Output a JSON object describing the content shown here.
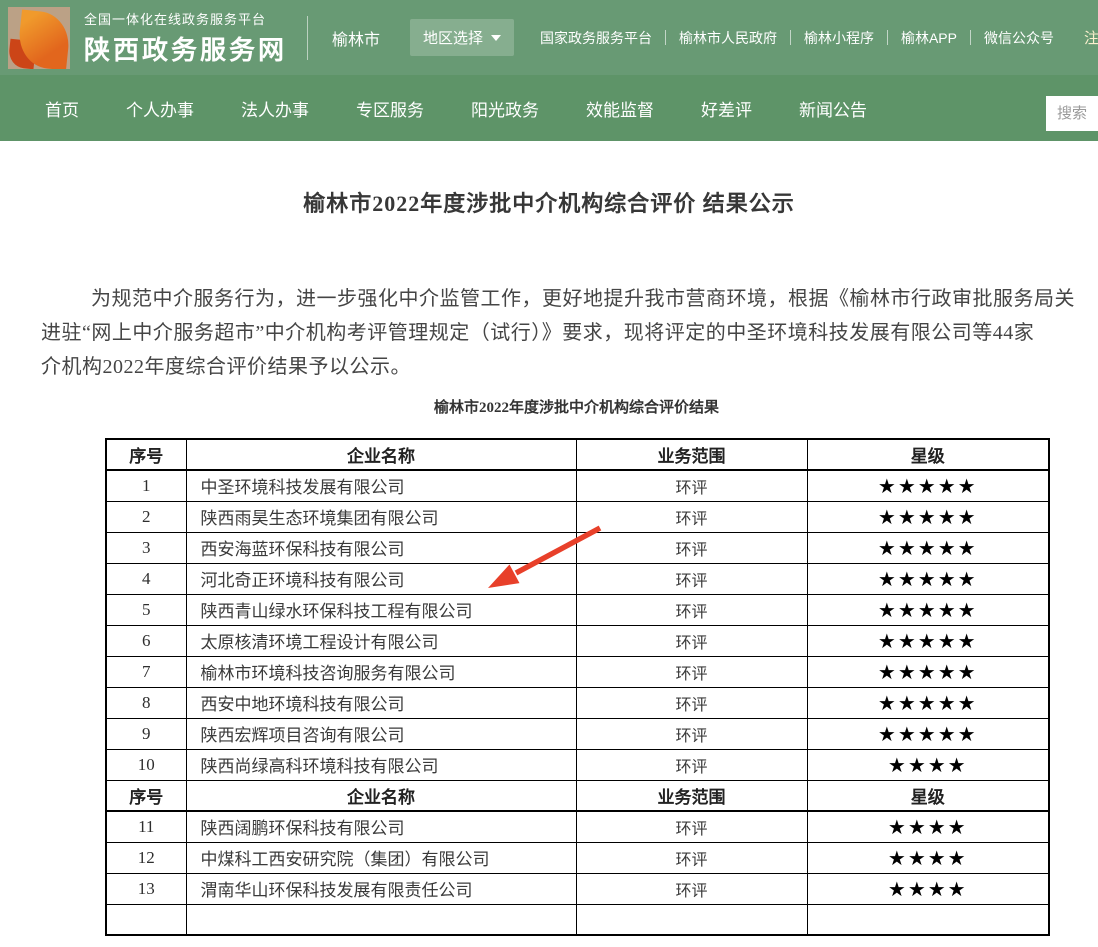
{
  "header": {
    "platform_tagline": "全国一体化在线政务服务平台",
    "site_name": "陕西政务服务网",
    "current_city": "榆林市",
    "region_selector_label": "地区选择",
    "links": [
      "国家政务服务平台",
      "榆林市人民政府",
      "榆林小程序",
      "榆林APP",
      "微信公众号"
    ],
    "register_label": "注册"
  },
  "nav": {
    "items": [
      "首页",
      "个人办事",
      "法人办事",
      "专区服务",
      "阳光政务",
      "效能监督",
      "好差评",
      "新闻公告"
    ],
    "search_placeholder": "搜索"
  },
  "article": {
    "title": "榆林市2022年度涉批中介机构综合评价 结果公示",
    "paragraph_lines": [
      "为规范中介服务行为，进一步强化中介监管工作，更好地提升我市营商环境，根据《榆林市行政审批服务局关",
      "进驻“网上中介服务超市”中介机构考评管理规定（试行）》要求，现将评定的中圣环境科技发展有限公司等44家",
      "介机构2022年度综合评价结果予以公示。"
    ],
    "table_caption": "榆林市2022年度涉批中介机构综合评价结果"
  },
  "table": {
    "headers": [
      "序号",
      "企业名称",
      "业务范围",
      "星级"
    ],
    "star_glyph": "★",
    "rows": [
      {
        "type": "header"
      },
      {
        "no": "1",
        "name": "中圣环境科技发展有限公司",
        "scope": "环评",
        "stars": 5
      },
      {
        "no": "2",
        "name": "陕西雨昊生态环境集团有限公司",
        "scope": "环评",
        "stars": 5
      },
      {
        "no": "3",
        "name": "西安海蓝环保科技有限公司",
        "scope": "环评",
        "stars": 5
      },
      {
        "no": "4",
        "name": "河北奇正环境科技有限公司",
        "scope": "环评",
        "stars": 5
      },
      {
        "no": "5",
        "name": "陕西青山绿水环保科技工程有限公司",
        "scope": "环评",
        "stars": 5
      },
      {
        "no": "6",
        "name": "太原核清环境工程设计有限公司",
        "scope": "环评",
        "stars": 5
      },
      {
        "no": "7",
        "name": "榆林市环境科技咨询服务有限公司",
        "scope": "环评",
        "stars": 5
      },
      {
        "no": "8",
        "name": "西安中地环境科技有限公司",
        "scope": "环评",
        "stars": 5
      },
      {
        "no": "9",
        "name": "陕西宏辉项目咨询有限公司",
        "scope": "环评",
        "stars": 5
      },
      {
        "no": "10",
        "name": "陕西尚绿高科环境科技有限公司",
        "scope": "环评",
        "stars": 4
      },
      {
        "type": "header"
      },
      {
        "no": "11",
        "name": "陕西阔鹏环保科技有限公司",
        "scope": "环评",
        "stars": 4
      },
      {
        "no": "12",
        "name": "中煤科工西安研究院（集团）有限公司",
        "scope": "环评",
        "stars": 4
      },
      {
        "no": "13",
        "name": "渭南华山环保科技发展有限责任公司",
        "scope": "环评",
        "stars": 4
      },
      {
        "type": "empty"
      }
    ]
  },
  "colors": {
    "header_green": "#689a74",
    "nav_green": "#5e9468",
    "register_text": "#fbf0ce",
    "arrow_red": "#e8402a",
    "table_border": "#000000"
  }
}
